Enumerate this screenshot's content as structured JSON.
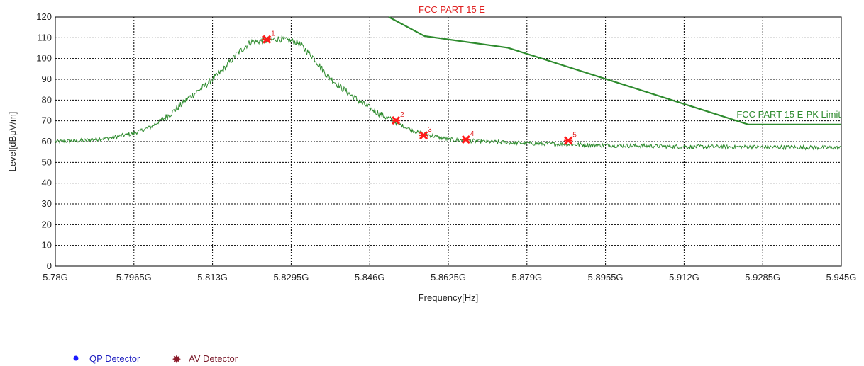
{
  "chart_data": {
    "type": "line",
    "title": "FCC PART 15 E",
    "xlabel": "Frequency[Hz]",
    "ylabel": "Level[dBμV/m]",
    "xlim": [
      5.78,
      5.945
    ],
    "ylim": [
      0,
      120
    ],
    "x_ticks": [
      5.78,
      5.7965,
      5.813,
      5.8295,
      5.846,
      5.8625,
      5.879,
      5.8955,
      5.912,
      5.9285,
      5.945
    ],
    "x_tick_labels": [
      "5.78G",
      "5.7965G",
      "5.813G",
      "5.8295G",
      "5.846G",
      "5.8625G",
      "5.879G",
      "5.8955G",
      "5.912G",
      "5.9285G",
      "5.945G"
    ],
    "y_ticks": [
      0,
      10,
      20,
      30,
      40,
      50,
      60,
      70,
      80,
      90,
      100,
      110,
      120
    ],
    "grid": true,
    "series": [
      {
        "name": "FCC PART 15 E-PK Limit",
        "color": "#2e8b2e",
        "x": [
          5.85,
          5.8575,
          5.875,
          5.9255,
          5.945
        ],
        "y": [
          122,
          110.8,
          105.2,
          68.2,
          68.2
        ]
      },
      {
        "name": "",
        "color": "#2e8b2e",
        "x": [
          5.78,
          5.786,
          5.792,
          5.7965,
          5.8,
          5.804,
          5.808,
          5.812,
          5.815,
          5.818,
          5.821,
          5.824,
          5.827,
          5.8295,
          5.831,
          5.834,
          5.837,
          5.84,
          5.844,
          5.848,
          5.852,
          5.856,
          5.8625,
          5.87,
          5.879,
          5.8955,
          5.912,
          5.9285,
          5.945
        ],
        "y": [
          60,
          60.5,
          62,
          64,
          67,
          73,
          81,
          88,
          94,
          102,
          108,
          108.5,
          109.5,
          108.5,
          107.5,
          101,
          92,
          86,
          79,
          73.5,
          68.5,
          64.5,
          61,
          60,
          59.2,
          58.2,
          57.6,
          57.4,
          57
        ]
      }
    ],
    "markers": [
      {
        "label": "1",
        "x": 5.8244,
        "y": 109.2,
        "detector": "AV Detector"
      },
      {
        "label": "2",
        "x": 5.8515,
        "y": 70.2,
        "detector": "AV Detector"
      },
      {
        "label": "3",
        "x": 5.8573,
        "y": 63,
        "detector": "AV Detector"
      },
      {
        "label": "4",
        "x": 5.8662,
        "y": 61,
        "detector": "AV Detector"
      },
      {
        "label": "5",
        "x": 5.8877,
        "y": 60.5,
        "detector": "AV Detector"
      }
    ],
    "annotations": [
      {
        "text": "FCC PART 15 E",
        "color": "#e02020"
      },
      {
        "text": "FCC PART 15 E-PK Limit",
        "color": "#2e8b2e"
      }
    ],
    "legend": {
      "placement": "bottom-left",
      "entries": [
        {
          "label": "QP Detector",
          "color": "#1a1aff",
          "label_color": "#2020c0"
        },
        {
          "label": "AV Detector",
          "color": "#8b1a2a",
          "label_color": "#7a1a2a"
        }
      ]
    }
  }
}
